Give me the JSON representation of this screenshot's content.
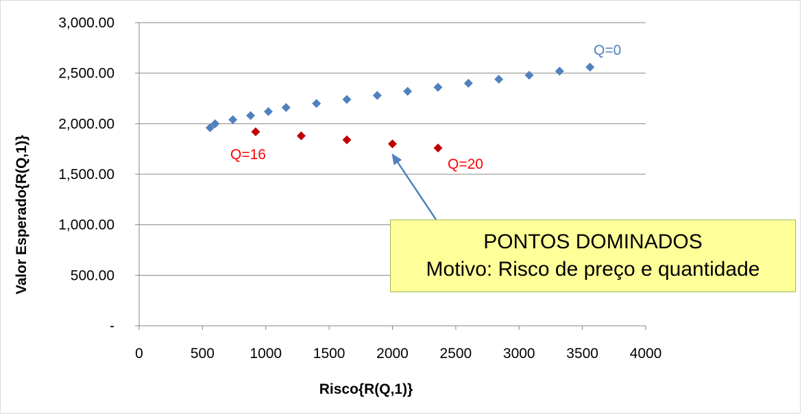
{
  "chart_data": {
    "type": "scatter",
    "xlabel": "Risco{R(Q,1)}",
    "ylabel": "Valor Esperado{R(Q,1)}",
    "xlim": [
      0,
      4000
    ],
    "ylim": [
      0,
      3000
    ],
    "x_ticks": [
      0,
      500,
      1000,
      1500,
      2000,
      2500,
      3000,
      3500,
      4000
    ],
    "x_tick_labels": [
      "0",
      "500",
      "1000",
      "1500",
      "2000",
      "2500",
      "3000",
      "3500",
      "4000"
    ],
    "y_ticks": [
      0,
      500,
      1000,
      1500,
      2000,
      2500,
      3000
    ],
    "y_tick_labels": [
      "-",
      "500.00",
      "1,000.00",
      "1,500.00",
      "2,000.00",
      "2,500.00",
      "3,000.00"
    ],
    "grid": "horizontal",
    "series": [
      {
        "color": "#4f81bd",
        "marker": "diamond",
        "points": [
          [
            560,
            1960
          ],
          [
            600,
            2000
          ],
          [
            740,
            2040
          ],
          [
            880,
            2080
          ],
          [
            1020,
            2120
          ],
          [
            1160,
            2160
          ],
          [
            1400,
            2200
          ],
          [
            1640,
            2240
          ],
          [
            1880,
            2280
          ],
          [
            2120,
            2320
          ],
          [
            2360,
            2360
          ],
          [
            2600,
            2400
          ],
          [
            2840,
            2440
          ],
          [
            3080,
            2480
          ],
          [
            3320,
            2520
          ],
          [
            3560,
            2560
          ]
        ]
      },
      {
        "color": "#c00000",
        "marker": "diamond",
        "points": [
          [
            920,
            1920
          ],
          [
            1280,
            1880
          ],
          [
            1640,
            1840
          ],
          [
            2000,
            1800
          ],
          [
            2360,
            1760
          ]
        ]
      }
    ],
    "annotations": [
      {
        "text": "Q=0",
        "color": "#4f81bd"
      },
      {
        "text": "Q=16",
        "color": "#ff0000"
      },
      {
        "text": "Q=20",
        "color": "#ff0000"
      }
    ],
    "callout": {
      "line1": "PONTOS DOMINADOS",
      "line2": "Motivo: Risco de preço e quantidade",
      "fill": "#ffff99",
      "arrow_target": [
        2000,
        1700
      ],
      "arrow_color": "#4f81bd"
    }
  }
}
